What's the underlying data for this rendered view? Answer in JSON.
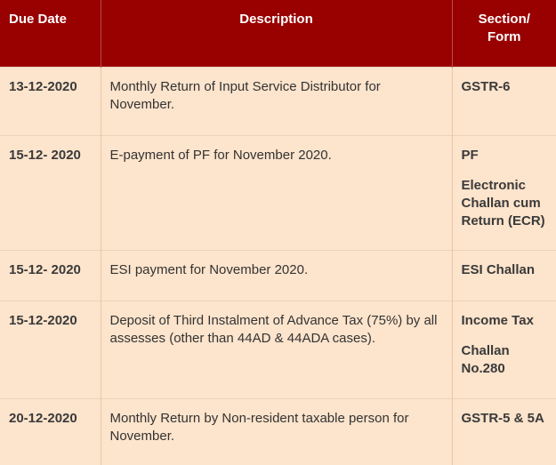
{
  "headers": {
    "due_date": "Due Date",
    "description": "Description",
    "section_form_line1": "Section/",
    "section_form_line2": "Form"
  },
  "rows": [
    {
      "due_date": "13-12-2020",
      "description": "Monthly Return of Input Service Distributor for November.",
      "form": [
        "GSTR-6"
      ]
    },
    {
      "due_date": "15-12- 2020",
      "description": "E-payment of PF for November 2020.",
      "form": [
        "PF",
        "Electronic Challan cum Return (ECR)"
      ]
    },
    {
      "due_date": "15-12- 2020",
      "description": "ESI payment for November 2020.",
      "form": [
        "ESI Challan"
      ]
    },
    {
      "due_date": "15-12-2020",
      "description": "Deposit of Third Instalment of Advance Tax (75%) by all assesses (other than 44AD & 44ADA cases).",
      "form": [
        "Income Tax",
        "Challan No.280"
      ]
    },
    {
      "due_date": "20-12-2020",
      "description": "Monthly Return by Non-resident taxable person for November.",
      "form": [
        "GSTR-5 & 5A"
      ]
    }
  ],
  "colors": {
    "header_bg": "#990000",
    "row_bg": "#fde4cc"
  }
}
